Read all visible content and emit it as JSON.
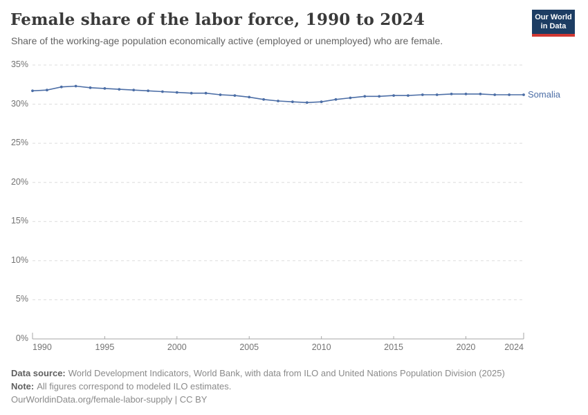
{
  "header": {
    "title": "Female share of the labor force, 1990 to 2024",
    "subtitle": "Share of the working-age population economically active (employed or unemployed) who are female.",
    "logo": {
      "line1": "Our World",
      "line2": "in Data",
      "bg_color": "#1d3d63",
      "accent_color": "#d13832"
    }
  },
  "chart_data": {
    "type": "line",
    "title": "Female share of the labor force, 1990 to 2024",
    "subtitle": "Share of the working-age population economically active (employed or unemployed) who are female.",
    "xlabel": "",
    "ylabel": "",
    "xlim": [
      1990,
      2024
    ],
    "ylim": [
      0,
      35
    ],
    "grid": "horizontal-dashed",
    "legend_position": "end-of-line-label",
    "x_tick_labels": [
      "1990",
      "1995",
      "2000",
      "2005",
      "2010",
      "2015",
      "2020",
      "2024"
    ],
    "y_tick_labels": [
      "0%",
      "5%",
      "10%",
      "15%",
      "20%",
      "25%",
      "30%",
      "35%"
    ],
    "x": [
      1990,
      1991,
      1992,
      1993,
      1994,
      1995,
      1996,
      1997,
      1998,
      1999,
      2000,
      2001,
      2002,
      2003,
      2004,
      2005,
      2006,
      2007,
      2008,
      2009,
      2010,
      2011,
      2012,
      2013,
      2014,
      2015,
      2016,
      2017,
      2018,
      2019,
      2020,
      2021,
      2022,
      2023,
      2024
    ],
    "series": [
      {
        "name": "Somalia",
        "color": "#4c6ea6",
        "values": [
          31.7,
          31.8,
          32.2,
          32.3,
          32.1,
          32.0,
          31.9,
          31.8,
          31.7,
          31.6,
          31.5,
          31.4,
          31.4,
          31.2,
          31.1,
          30.9,
          30.6,
          30.4,
          30.3,
          30.2,
          30.3,
          30.6,
          30.8,
          31.0,
          31.0,
          31.1,
          31.1,
          31.2,
          31.2,
          31.3,
          31.3,
          31.3,
          31.2,
          31.2,
          31.2
        ]
      }
    ],
    "axis_color": "#a6a6a6",
    "grid_color": "#dcdcdc"
  },
  "footer": {
    "source_label": "Data source:",
    "source_text": "World Development Indicators, World Bank, with data from ILO and United Nations Population Division (2025)",
    "note_label": "Note:",
    "note_text": "All figures correspond to modeled ILO estimates.",
    "url_text": "OurWorldinData.org/female-labor-supply | CC BY"
  }
}
